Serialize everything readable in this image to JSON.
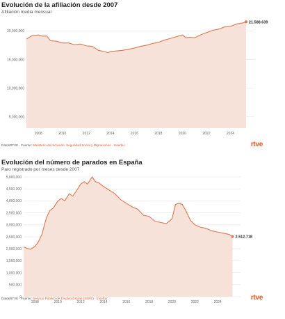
{
  "chart_data": [
    {
      "type": "area",
      "title": "Evolución de la afiliación desde 2007",
      "subtitle": "Afiliación media mensual",
      "end_label": "21.588.639",
      "source_prefix": "DatosRTVE · Fuente: ",
      "source_org": "Ministerio de Inclusión, Seguridad Social y Migraciones · Insertar",
      "logo": "rtve",
      "line_color": "#d9794f",
      "fill_color": "#f7e2da",
      "ylim": [
        3000000,
        22000000
      ],
      "xlim": [
        2007,
        2026
      ],
      "yticks": [
        5000000,
        10000000,
        15000000,
        20000000
      ],
      "ytick_labels": [
        "5,000,000",
        "10,000,000",
        "15,000,000",
        "20,000,000"
      ],
      "xticks": [
        2008,
        2010,
        2012,
        2014,
        2016,
        2018,
        2020,
        2022,
        2024
      ],
      "xtick_labels": [
        "2008",
        "2010",
        "2012",
        "2014",
        "2016",
        "2018",
        "2020",
        "2022",
        "2024"
      ],
      "x": [
        2007.0,
        2007.5,
        2008.0,
        2008.3,
        2008.7,
        2009.0,
        2009.5,
        2010.0,
        2010.5,
        2011.0,
        2011.5,
        2012.0,
        2012.5,
        2013.0,
        2013.5,
        2013.8,
        2014.0,
        2014.5,
        2015.0,
        2015.5,
        2016.0,
        2016.5,
        2017.0,
        2017.5,
        2018.0,
        2018.5,
        2019.0,
        2019.5,
        2020.0,
        2020.3,
        2020.6,
        2021.0,
        2021.5,
        2022.0,
        2022.5,
        2023.0,
        2023.5,
        2024.0,
        2024.5,
        2025.0,
        2025.3
      ],
      "y": [
        18600000,
        19200000,
        19300000,
        19100000,
        19100000,
        18300000,
        18200000,
        17900000,
        17900000,
        17600000,
        17700000,
        17400000,
        17300000,
        16600000,
        16400000,
        16200000,
        16400000,
        16500000,
        16600000,
        16800000,
        17000000,
        17300000,
        17500000,
        17800000,
        18000000,
        18400000,
        18700000,
        19000000,
        19300000,
        18800000,
        18900000,
        18800000,
        19300000,
        19700000,
        20100000,
        20300000,
        20700000,
        20800000,
        21200000,
        21400000,
        21588639
      ]
    },
    {
      "type": "area",
      "title": "Evolución del número de parados en España",
      "subtitle": "Paro registrado por meses desde 2007",
      "end_label": "2.512.718",
      "source_prefix": "DatosRTVE · Fuente: ",
      "source_org": "Servicio Público de Empleo Estatal (SEPE) · Insertar",
      "logo": "rtve",
      "line_color": "#d9794f",
      "fill_color": "#f7e2da",
      "ylim": [
        0,
        5000000
      ],
      "xlim": [
        2007,
        2026
      ],
      "yticks": [
        0,
        500000,
        1000000,
        1500000,
        2000000,
        2500000,
        3000000,
        3500000,
        4000000,
        4500000,
        5000000
      ],
      "ytick_labels": [
        "0",
        "500,000",
        "1,000,000",
        "1,500,000",
        "2,000,000",
        "2,500,000",
        "3,000,000",
        "3,500,000",
        "4,000,000",
        "4,500,000",
        "5,000,000"
      ],
      "xticks": [
        2008,
        2010,
        2012,
        2014,
        2016,
        2018,
        2020,
        2022,
        2024
      ],
      "xtick_labels": [
        "2008",
        "2010",
        "2012",
        "2014",
        "2016",
        "2018",
        "2020",
        "2022",
        "2024"
      ],
      "x": [
        2007.0,
        2007.3,
        2007.6,
        2008.0,
        2008.3,
        2008.6,
        2009.0,
        2009.3,
        2009.6,
        2010.0,
        2010.3,
        2010.6,
        2011.0,
        2011.3,
        2011.6,
        2012.0,
        2012.3,
        2012.6,
        2013.0,
        2013.3,
        2013.6,
        2014.0,
        2014.5,
        2015.0,
        2015.5,
        2016.0,
        2016.5,
        2017.0,
        2017.5,
        2018.0,
        2018.5,
        2019.0,
        2019.5,
        2020.0,
        2020.3,
        2020.6,
        2020.9,
        2021.2,
        2021.6,
        2022.0,
        2022.5,
        2023.0,
        2023.5,
        2024.0,
        2024.5,
        2025.0,
        2025.3
      ],
      "y": [
        2080000,
        2020000,
        1980000,
        2100000,
        2300000,
        2600000,
        3300000,
        3600000,
        3700000,
        4000000,
        4100000,
        4000000,
        4300000,
        4200000,
        4400000,
        4700000,
        4800000,
        4700000,
        5000000,
        4800000,
        4750000,
        4600000,
        4450000,
        4300000,
        4050000,
        3900000,
        3750000,
        3650000,
        3400000,
        3350000,
        3150000,
        3100000,
        3050000,
        3250000,
        3850000,
        3900000,
        3850000,
        3600000,
        3200000,
        3000000,
        2900000,
        2850000,
        2750000,
        2700000,
        2650000,
        2600000,
        2512718
      ]
    }
  ]
}
